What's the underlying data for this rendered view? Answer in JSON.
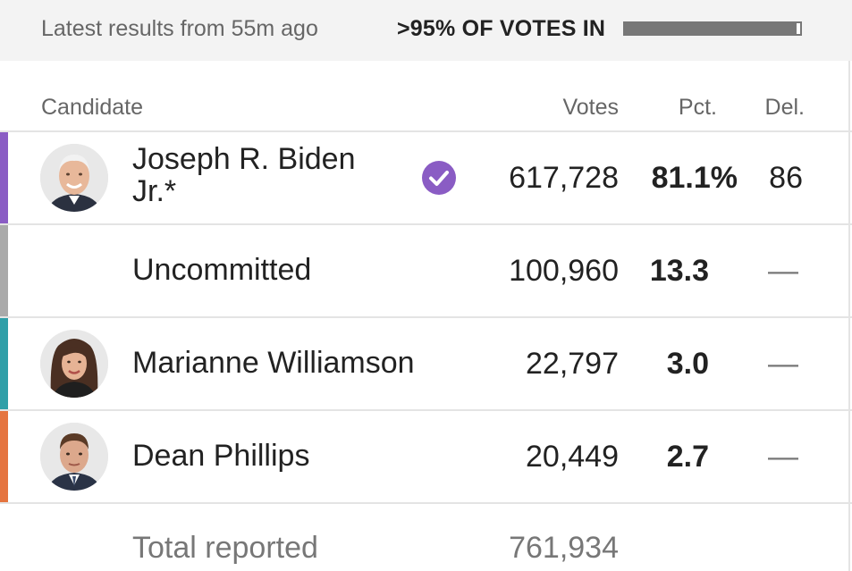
{
  "status": {
    "updated": "Latest results from 55m ago",
    "reporting": ">95% OF VOTES IN",
    "reporting_fraction": 0.98
  },
  "table": {
    "headers": {
      "candidate": "Candidate",
      "votes": "Votes",
      "pct": "Pct.",
      "del": "Del."
    },
    "rows": [
      {
        "name_line1": "Joseph R. Biden",
        "name_line2": "Jr.*",
        "votes": "617,728",
        "pct": "81.1%",
        "del": "86",
        "winner": true,
        "color": "#8a5cc4",
        "avatar": "biden-avatar"
      },
      {
        "name": "Uncommitted",
        "votes": "100,960",
        "pct": "13.3",
        "del": "—",
        "color": "#aaaaaa"
      },
      {
        "name": "Marianne Williamson",
        "votes": "22,797",
        "pct": "3.0",
        "del": "—",
        "color": "#2f9fa8",
        "avatar": "williamson-avatar"
      },
      {
        "name": "Dean Phillips",
        "votes": "20,449",
        "pct": "2.7",
        "del": "—",
        "color": "#e5743f",
        "avatar": "phillips-avatar"
      }
    ],
    "total": {
      "label": "Total reported",
      "votes": "761,934"
    }
  },
  "colors": {
    "winner_check": "#8a5cc4"
  }
}
